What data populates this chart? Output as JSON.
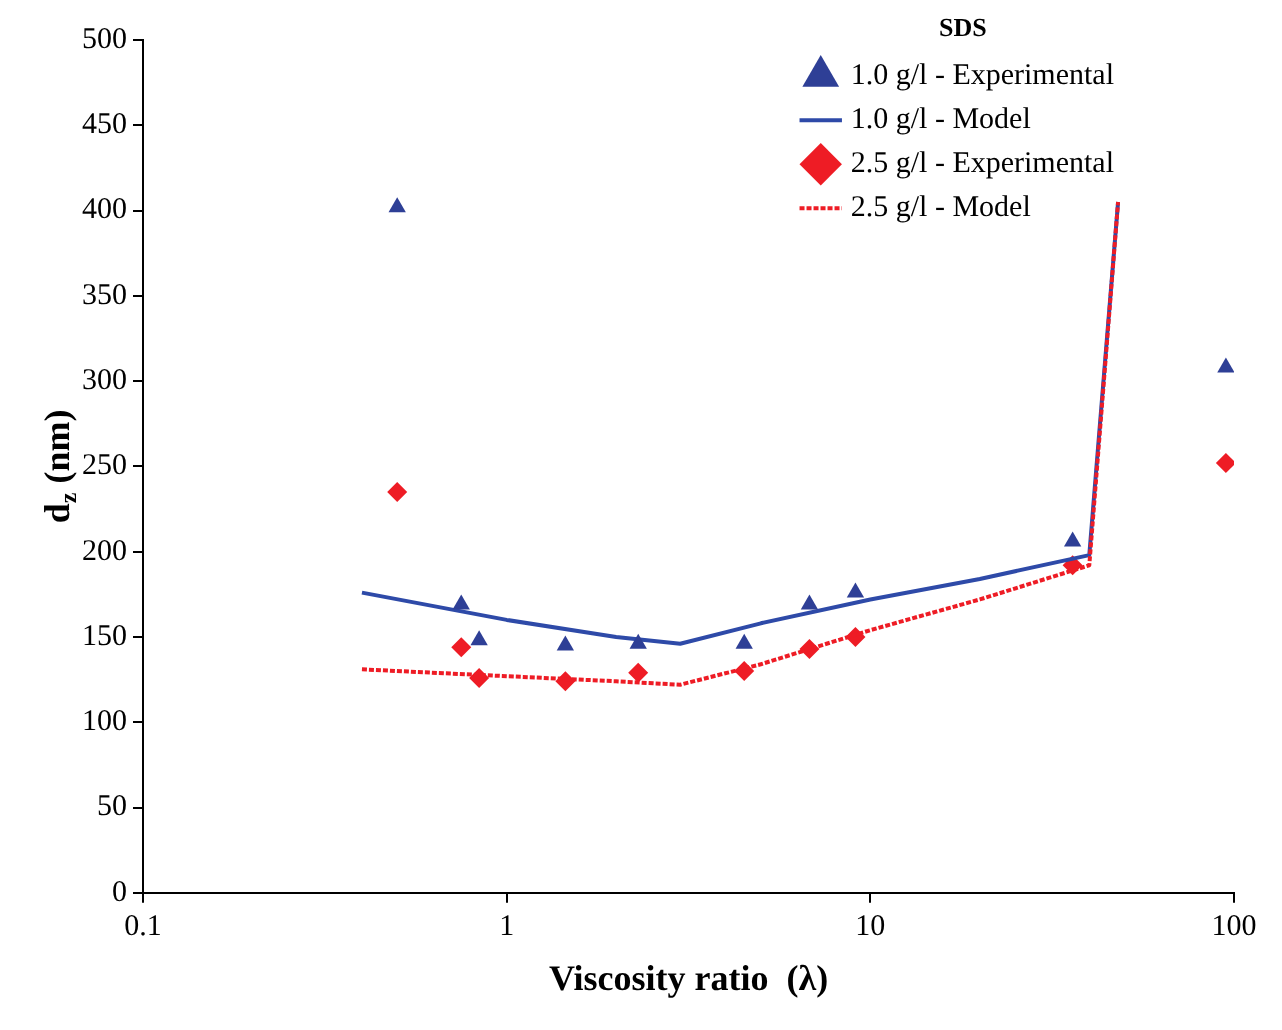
{
  "chart_data": {
    "type": "scatter",
    "xlabel": "Viscosity ratio  (λ)",
    "ylabel": "d$_{z}$ (nm)",
    "legend_title": "SDS",
    "legend": "top right",
    "grid": false,
    "log": "x",
    "xlim": [
      0.1,
      100
    ],
    "xticks": [
      0.1,
      1,
      10,
      100
    ],
    "ylim": [
      0,
      500
    ],
    "yticks": [
      0,
      50,
      100,
      150,
      200,
      250,
      300,
      350,
      400,
      450,
      500
    ],
    "series": [
      {
        "name": "1.0 g/l - Experimental",
        "marker": "triangle",
        "color": "#2e3f96",
        "x": [
          0.5,
          0.75,
          0.84,
          1.45,
          2.3,
          4.5,
          6.8,
          9.1,
          36,
          95
        ],
        "values": [
          402,
          169,
          148,
          145,
          146,
          146,
          169,
          176,
          206,
          308
        ]
      },
      {
        "name": "1.0 g/l - Model",
        "type": "line",
        "marker": "none",
        "line_style": "solid",
        "color": "#2e4aa8",
        "x": [
          0.4,
          1,
          2,
          3,
          5,
          10,
          20,
          40,
          48
        ],
        "values": [
          176,
          160,
          150,
          146,
          158,
          172,
          184,
          198,
          405
        ]
      },
      {
        "name": "2.5 g/l - Experimental",
        "marker": "diamond",
        "color": "#ee1c25",
        "x": [
          0.5,
          0.75,
          0.84,
          1.45,
          2.3,
          4.5,
          6.8,
          9.1,
          36,
          95
        ],
        "values": [
          235,
          144,
          126,
          124,
          129,
          130,
          143,
          150,
          192,
          252
        ]
      },
      {
        "name": "2.5 g/l - Model",
        "type": "line",
        "marker": "none",
        "line_style": "dotted",
        "color": "#ee1c25",
        "x": [
          0.4,
          1,
          2,
          3,
          5,
          10,
          20,
          40,
          48
        ],
        "values": [
          131,
          127,
          124,
          122,
          134,
          154,
          172,
          192,
          405
        ]
      }
    ]
  }
}
